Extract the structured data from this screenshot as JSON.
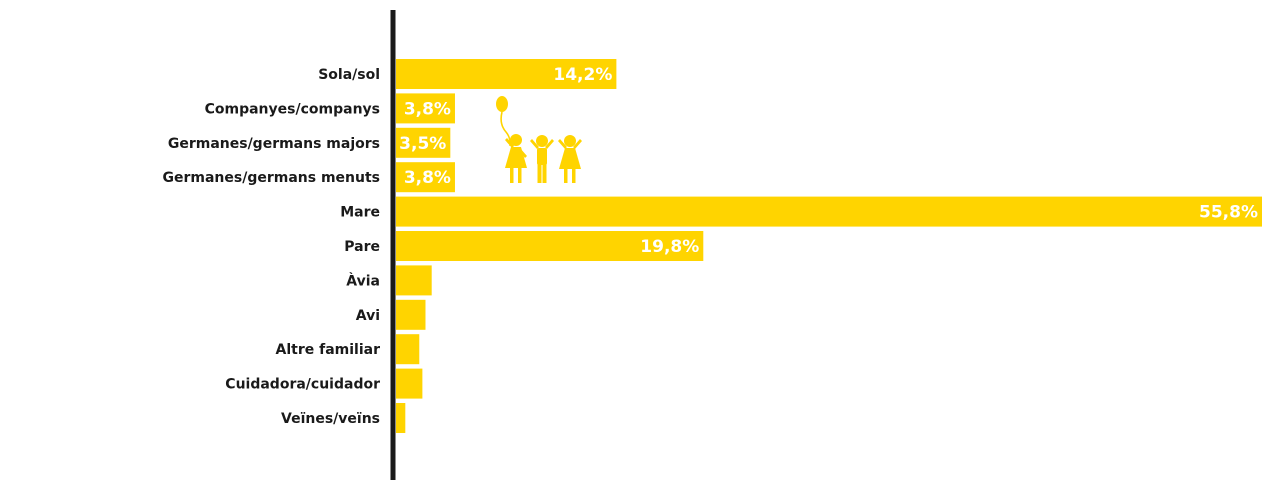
{
  "chart_data": {
    "type": "bar",
    "orientation": "horizontal",
    "categories": [
      "Sola/sol",
      "Companyes/companys",
      "Germanes/germans majors",
      "Germanes/germans menuts",
      "Mare",
      "Pare",
      "Àvia",
      "Avi",
      "Altre familiar",
      "Cuidadora/cuidador",
      "Veïnes/veïns"
    ],
    "values": [
      14.2,
      3.8,
      3.5,
      3.8,
      55.8,
      19.8,
      2.3,
      1.9,
      1.5,
      1.7,
      0.6
    ],
    "data_labels": [
      "14,2%",
      "3,8%",
      "3,5%",
      "3,8%",
      "55,8%",
      "19,8%",
      "",
      "",
      "",
      "",
      ""
    ],
    "xlim": [
      0,
      55.8
    ],
    "grid": false,
    "legend": "none",
    "colors": {
      "bar": "#FFD400",
      "axis": "#1a1a1a",
      "label_text": "#1a1a1a",
      "value_text": "#ffffff",
      "icon": "#FFD400"
    },
    "decoration": {
      "icon": "children-with-balloon-icon"
    }
  }
}
